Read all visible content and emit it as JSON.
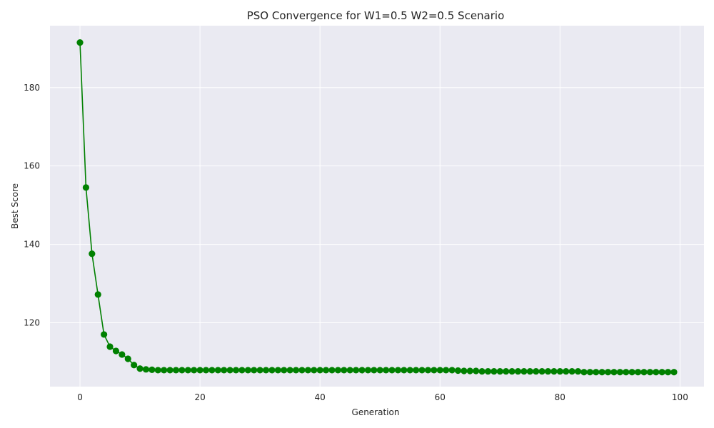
{
  "chart_data": {
    "type": "line",
    "title": "PSO Convergence for W1=0.5 W2=0.5 Scenario",
    "xlabel": "Generation",
    "ylabel": "Best Score",
    "xlim": [
      -5,
      104
    ],
    "ylim": [
      103.7,
      195.8
    ],
    "xticks": [
      0,
      20,
      40,
      60,
      80,
      100
    ],
    "yticks": [
      120,
      140,
      160,
      180
    ],
    "grid": true,
    "colors": {
      "series": "#008000",
      "background": "#eaeaf2",
      "grid": "#ffffff"
    },
    "marker": "circle",
    "series": [
      {
        "values": [
          191.5,
          154.5,
          137.6,
          127.2,
          117.0,
          113.9,
          112.8,
          111.9,
          110.8,
          109.2,
          108.3,
          108.1,
          108.0,
          107.9,
          107.9,
          107.9,
          107.9,
          107.9,
          107.9,
          107.9,
          107.9,
          107.9,
          107.9,
          107.9,
          107.9,
          107.9,
          107.9,
          107.9,
          107.9,
          107.9,
          107.9,
          107.9,
          107.9,
          107.9,
          107.9,
          107.9,
          107.9,
          107.9,
          107.9,
          107.9,
          107.9,
          107.9,
          107.9,
          107.9,
          107.9,
          107.9,
          107.9,
          107.9,
          107.9,
          107.9,
          107.9,
          107.9,
          107.9,
          107.9,
          107.9,
          107.9,
          107.9,
          107.9,
          107.9,
          107.9,
          107.9,
          107.9,
          107.9,
          107.8,
          107.7,
          107.7,
          107.7,
          107.6,
          107.6,
          107.6,
          107.6,
          107.6,
          107.6,
          107.6,
          107.6,
          107.6,
          107.6,
          107.6,
          107.6,
          107.6,
          107.6,
          107.6,
          107.6,
          107.6,
          107.4,
          107.4,
          107.4,
          107.4,
          107.4,
          107.4,
          107.4,
          107.4,
          107.4,
          107.4,
          107.4,
          107.4,
          107.4,
          107.4,
          107.4,
          107.4
        ]
      }
    ]
  }
}
